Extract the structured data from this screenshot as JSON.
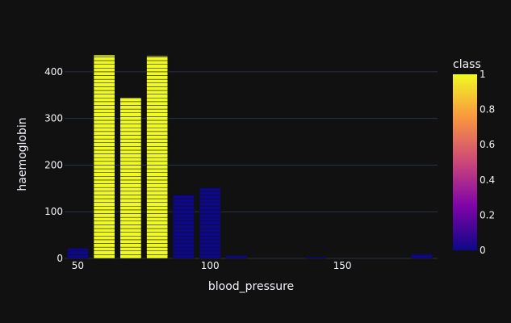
{
  "chart_data": {
    "type": "bar",
    "title": "",
    "xlabel": "blood_pressure",
    "ylabel": "haemoglobin",
    "xlim": [
      45,
      186
    ],
    "ylim": [
      0,
      450
    ],
    "x_ticks": [
      50,
      100,
      150
    ],
    "y_ticks": [
      0,
      100,
      200,
      300,
      400
    ],
    "bar_width": 8,
    "segment_step": 8,
    "grid": true,
    "bars": [
      {
        "x": 50,
        "y": 22,
        "class": 0
      },
      {
        "x": 60,
        "y": 436,
        "class": 1
      },
      {
        "x": 70,
        "y": 344,
        "class": 1
      },
      {
        "x": 80,
        "y": 434,
        "class": 1
      },
      {
        "x": 90,
        "y": 137,
        "class": 0
      },
      {
        "x": 100,
        "y": 151,
        "class": 0
      },
      {
        "x": 110,
        "y": 6,
        "class": 0
      },
      {
        "x": 140,
        "y": 3,
        "class": 0
      },
      {
        "x": 180,
        "y": 10,
        "class": 0
      }
    ],
    "colorbar": {
      "title": "class",
      "ticks": [
        "0",
        "0.2",
        "0.4",
        "0.6",
        "0.8",
        "1"
      ],
      "colors": {
        "low": "#0d0887",
        "mid_low": "#7e03a8",
        "mid": "#cc4778",
        "mid_high": "#f89540",
        "high": "#f0f921"
      }
    },
    "colors": {
      "background": "#111111",
      "grid": "#283442",
      "text": "#f2f5fa",
      "bar_outline": "#111111"
    }
  }
}
